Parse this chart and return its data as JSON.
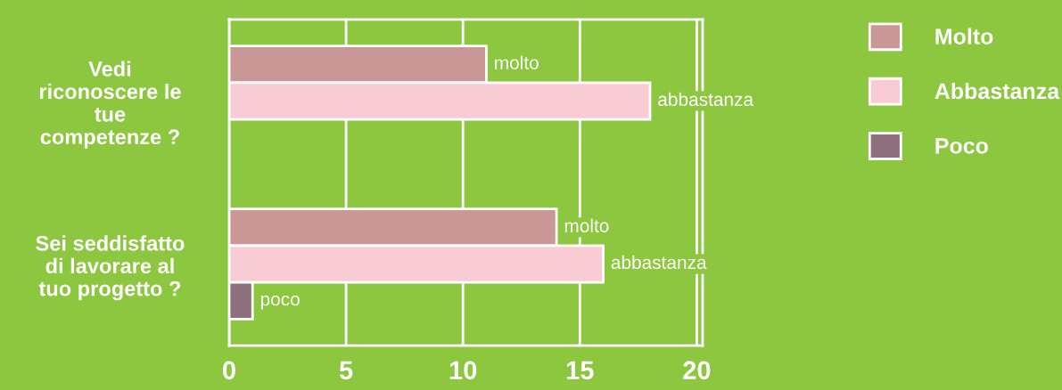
{
  "chart_data": {
    "type": "bar",
    "orientation": "horizontal",
    "categories": [
      "Vedi\nriconoscere le\ntue\ncompetenze ?",
      "Sei seddisfatto\ndi lavorare al\ntuo progetto ?"
    ],
    "series": [
      {
        "name": "Molto",
        "color": "#c99795",
        "values": [
          11,
          14
        ],
        "value_labels": [
          "molto",
          "molto"
        ]
      },
      {
        "name": "Abbastanza",
        "color": "#f9ccd5",
        "values": [
          18,
          16
        ],
        "value_labels": [
          "abbastanza",
          "abbastanza"
        ]
      },
      {
        "name": "Poco",
        "color": "#8e6f7d",
        "values": [
          null,
          1
        ],
        "value_labels": [
          null,
          "poco"
        ]
      }
    ],
    "xlim": [
      0,
      20.25
    ],
    "xticks": [
      0,
      5,
      10,
      15,
      20
    ],
    "grid": "x",
    "legend": "right"
  }
}
